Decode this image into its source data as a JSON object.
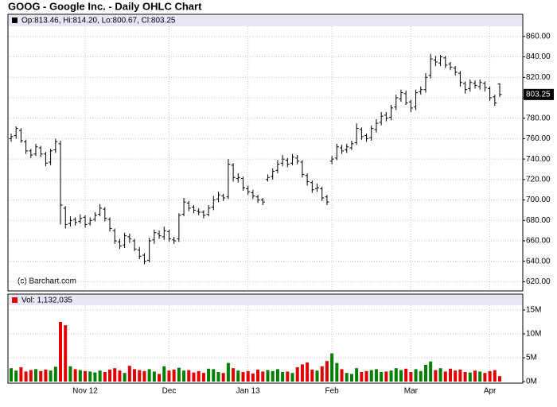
{
  "chart_data": {
    "type": "ohlc",
    "title": "GOOG - Google Inc. - Daily OHLC Chart",
    "legend": "Op:813.46, Hi:814.20, Lo:800.67, Cl:803.25",
    "volume_legend": "Vol: 1,132,035",
    "copyright": "(c) Barchart.com",
    "last_price": {
      "value": 803.25,
      "label": "803.25"
    },
    "bar_color": "#000000",
    "up_color": "#008000",
    "down_color": "#e00000",
    "grid": true,
    "categories": [
      null,
      null,
      null,
      null,
      null,
      null,
      null,
      null,
      null,
      null,
      null,
      null,
      null,
      null,
      null,
      "Nov 12",
      null,
      null,
      null,
      null,
      null,
      null,
      null,
      null,
      null,
      null,
      null,
      null,
      null,
      null,
      null,
      null,
      "Dec",
      null,
      null,
      null,
      null,
      null,
      null,
      null,
      null,
      null,
      null,
      null,
      null,
      null,
      null,
      null,
      "Jan 13",
      null,
      null,
      null,
      null,
      null,
      null,
      null,
      null,
      null,
      null,
      null,
      null,
      null,
      null,
      null,
      null,
      "Feb",
      null,
      null,
      null,
      null,
      null,
      null,
      null,
      null,
      null,
      null,
      null,
      null,
      null,
      null,
      null,
      "Mar",
      null,
      null,
      null,
      null,
      null,
      null,
      null,
      null,
      null,
      null,
      null,
      null,
      null,
      null,
      null,
      "Apr",
      null,
      null
    ],
    "open": [
      760,
      763,
      768,
      757,
      748,
      745,
      751,
      745,
      737,
      749,
      755,
      692,
      677,
      681,
      679,
      683,
      677,
      681,
      686,
      691,
      681,
      670,
      659,
      656,
      664,
      660,
      651,
      646,
      641,
      661,
      667,
      664,
      669,
      661,
      662,
      686,
      697,
      693,
      689,
      688,
      686,
      693,
      701,
      704,
      703,
      734,
      721,
      721,
      711,
      707,
      703,
      700,
      720,
      723,
      729,
      736,
      739,
      736,
      741,
      737,
      724,
      717,
      711,
      711,
      703,
      738,
      741,
      751,
      749,
      751,
      756,
      769,
      763,
      761,
      769,
      776,
      783,
      781,
      791,
      799,
      804,
      796,
      791,
      806,
      808,
      822,
      837,
      834,
      839,
      833,
      829,
      824,
      814,
      809,
      814,
      811,
      814,
      809,
      801,
      813.46
    ],
    "high": [
      765,
      772,
      770,
      759,
      750,
      755,
      753,
      747,
      750,
      760,
      758,
      694,
      684,
      683,
      686,
      685,
      683,
      688,
      696,
      693,
      683,
      672,
      662,
      668,
      667,
      662,
      654,
      648,
      663,
      671,
      670,
      674,
      671,
      664,
      687,
      702,
      699,
      695,
      692,
      690,
      695,
      704,
      708,
      706,
      740,
      736,
      726,
      723,
      714,
      710,
      705,
      702,
      725,
      731,
      739,
      744,
      741,
      745,
      744,
      739,
      726,
      719,
      716,
      713,
      705,
      743,
      755,
      754,
      755,
      758,
      775,
      771,
      765,
      773,
      779,
      786,
      786,
      793,
      803,
      808,
      807,
      798,
      808,
      811,
      824,
      843,
      841,
      842,
      841,
      835,
      831,
      826,
      816,
      818,
      817,
      818,
      816,
      811,
      803,
      814.2
    ],
    "low": [
      757,
      760,
      756,
      745,
      741,
      743,
      742,
      733,
      734,
      746,
      676,
      672,
      674,
      675,
      677,
      673,
      675,
      679,
      684,
      679,
      669,
      657,
      652,
      653,
      658,
      650,
      642,
      637,
      639,
      657,
      662,
      661,
      659,
      657,
      659,
      684,
      689,
      687,
      685,
      682,
      684,
      690,
      698,
      699,
      701,
      718,
      717,
      709,
      705,
      701,
      697,
      695,
      718,
      720,
      726,
      733,
      732,
      734,
      735,
      722,
      714,
      707,
      708,
      699,
      695,
      735,
      739,
      745,
      746,
      749,
      754,
      759,
      757,
      758,
      766,
      773,
      777,
      778,
      788,
      796,
      793,
      786,
      788,
      803,
      805,
      819,
      831,
      831,
      829,
      827,
      822,
      811,
      804,
      806,
      809,
      808,
      806,
      797,
      792,
      800.67
    ],
    "close": [
      762,
      770,
      758,
      748,
      744,
      752,
      745,
      736,
      748,
      757,
      695,
      676,
      680,
      678,
      682,
      676,
      680,
      685,
      692,
      682,
      672,
      660,
      655,
      665,
      662,
      652,
      645,
      640,
      660,
      668,
      665,
      670,
      662,
      660,
      685,
      698,
      692,
      690,
      688,
      685,
      692,
      700,
      705,
      702,
      735,
      722,
      722,
      712,
      708,
      704,
      700,
      698,
      722,
      728,
      735,
      740,
      735,
      742,
      738,
      725,
      718,
      710,
      712,
      702,
      698,
      740,
      752,
      748,
      752,
      755,
      770,
      762,
      760,
      770,
      775,
      782,
      780,
      790,
      800,
      805,
      795,
      790,
      805,
      808,
      820,
      838,
      835,
      840,
      832,
      830,
      825,
      815,
      808,
      815,
      812,
      815,
      810,
      800,
      795,
      803.25
    ],
    "volume": [
      2800000,
      2300000,
      3000000,
      2100000,
      2400000,
      2600000,
      2200000,
      2500000,
      2300000,
      3100000,
      12500000,
      11800000,
      3200000,
      2600000,
      2400000,
      2200000,
      2100000,
      1900000,
      2300000,
      2000000,
      2500000,
      2800000,
      2300000,
      1800000,
      3300000,
      2600000,
      2400000,
      2200000,
      2600000,
      2100000,
      1600000,
      3200000,
      2300000,
      2500000,
      2900000,
      2300000,
      2400000,
      1900000,
      2200000,
      1800000,
      2700000,
      2600000,
      2000000,
      1800000,
      3900000,
      2800000,
      2300000,
      2000000,
      2200000,
      1700000,
      2500000,
      2100000,
      2400000,
      2200000,
      2600000,
      2000000,
      2100000,
      1800000,
      3000000,
      3600000,
      4000000,
      2500000,
      2300000,
      3200000,
      4300000,
      5900000,
      3900000,
      2600000,
      1800000,
      1600000,
      2800000,
      2000000,
      2200000,
      2400000,
      2600000,
      2000000,
      2100000,
      2300000,
      2800000,
      2400000,
      2700000,
      2000000,
      2600000,
      2200000,
      3500000,
      4200000,
      2400000,
      2800000,
      2100000,
      2700000,
      2300000,
      2500000,
      2000000,
      1900000,
      2300000,
      2100000,
      1800000,
      2200000,
      2400000,
      1132035
    ],
    "ylim": [
      611,
      870
    ],
    "yticks": [
      {
        "value": 620,
        "label": "620.00"
      },
      {
        "value": 640,
        "label": "640.00"
      },
      {
        "value": 660,
        "label": "660.00"
      },
      {
        "value": 680,
        "label": "680.00"
      },
      {
        "value": 700,
        "label": "700.00"
      },
      {
        "value": 720,
        "label": "720.00"
      },
      {
        "value": 740,
        "label": "740.00"
      },
      {
        "value": 760,
        "label": "760.00"
      },
      {
        "value": 780,
        "label": "780.00"
      },
      {
        "value": 800,
        "label": "800.00"
      },
      {
        "value": 820,
        "label": "820.00"
      },
      {
        "value": 840,
        "label": "840.00"
      },
      {
        "value": 860,
        "label": "860.00"
      }
    ],
    "y2lim": [
      0,
      16000000
    ],
    "y2ticks": [
      {
        "value": 0,
        "label": "0M"
      },
      {
        "value": 5000000,
        "label": "5M"
      },
      {
        "value": 10000000,
        "label": "10M"
      },
      {
        "value": 15000000,
        "label": "15M"
      }
    ]
  }
}
